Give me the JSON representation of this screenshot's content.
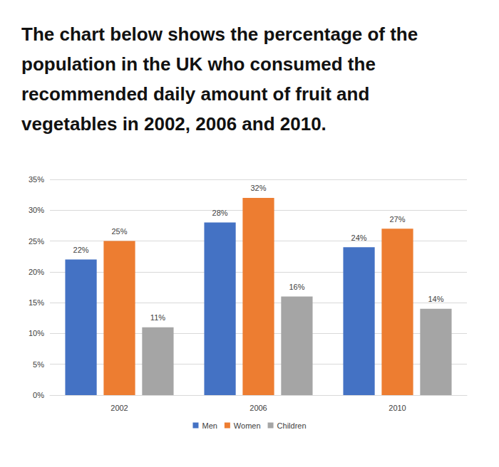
{
  "chart_data": {
    "type": "bar",
    "title": "The chart below shows the percentage of the population in the UK who consumed the recommended daily amount of fruit and vegetables in 2002, 2006 and 2010.",
    "categories": [
      "2002",
      "2006",
      "2010"
    ],
    "series": [
      {
        "name": "Men",
        "color": "#4472c4",
        "values": [
          22,
          28,
          24
        ],
        "value_labels": [
          "22%",
          "28%",
          "24%"
        ]
      },
      {
        "name": "Women",
        "color": "#ed7d31",
        "values": [
          25,
          32,
          27
        ],
        "value_labels": [
          "25%",
          "32%",
          "27%"
        ]
      },
      {
        "name": "Children",
        "color": "#a5a5a5",
        "values": [
          11,
          16,
          14
        ],
        "value_labels": [
          "11%",
          "16%",
          "14%"
        ]
      }
    ],
    "ylim": [
      0,
      35
    ],
    "yticks": [
      {
        "value": 0,
        "label": "0%"
      },
      {
        "value": 5,
        "label": "5%"
      },
      {
        "value": 10,
        "label": "10%"
      },
      {
        "value": 15,
        "label": "15%"
      },
      {
        "value": 20,
        "label": "20%"
      },
      {
        "value": 25,
        "label": "25%"
      },
      {
        "value": 30,
        "label": "30%"
      },
      {
        "value": 35,
        "label": "35%"
      }
    ],
    "grid": true,
    "legend": "bottom",
    "data_labels": true
  }
}
